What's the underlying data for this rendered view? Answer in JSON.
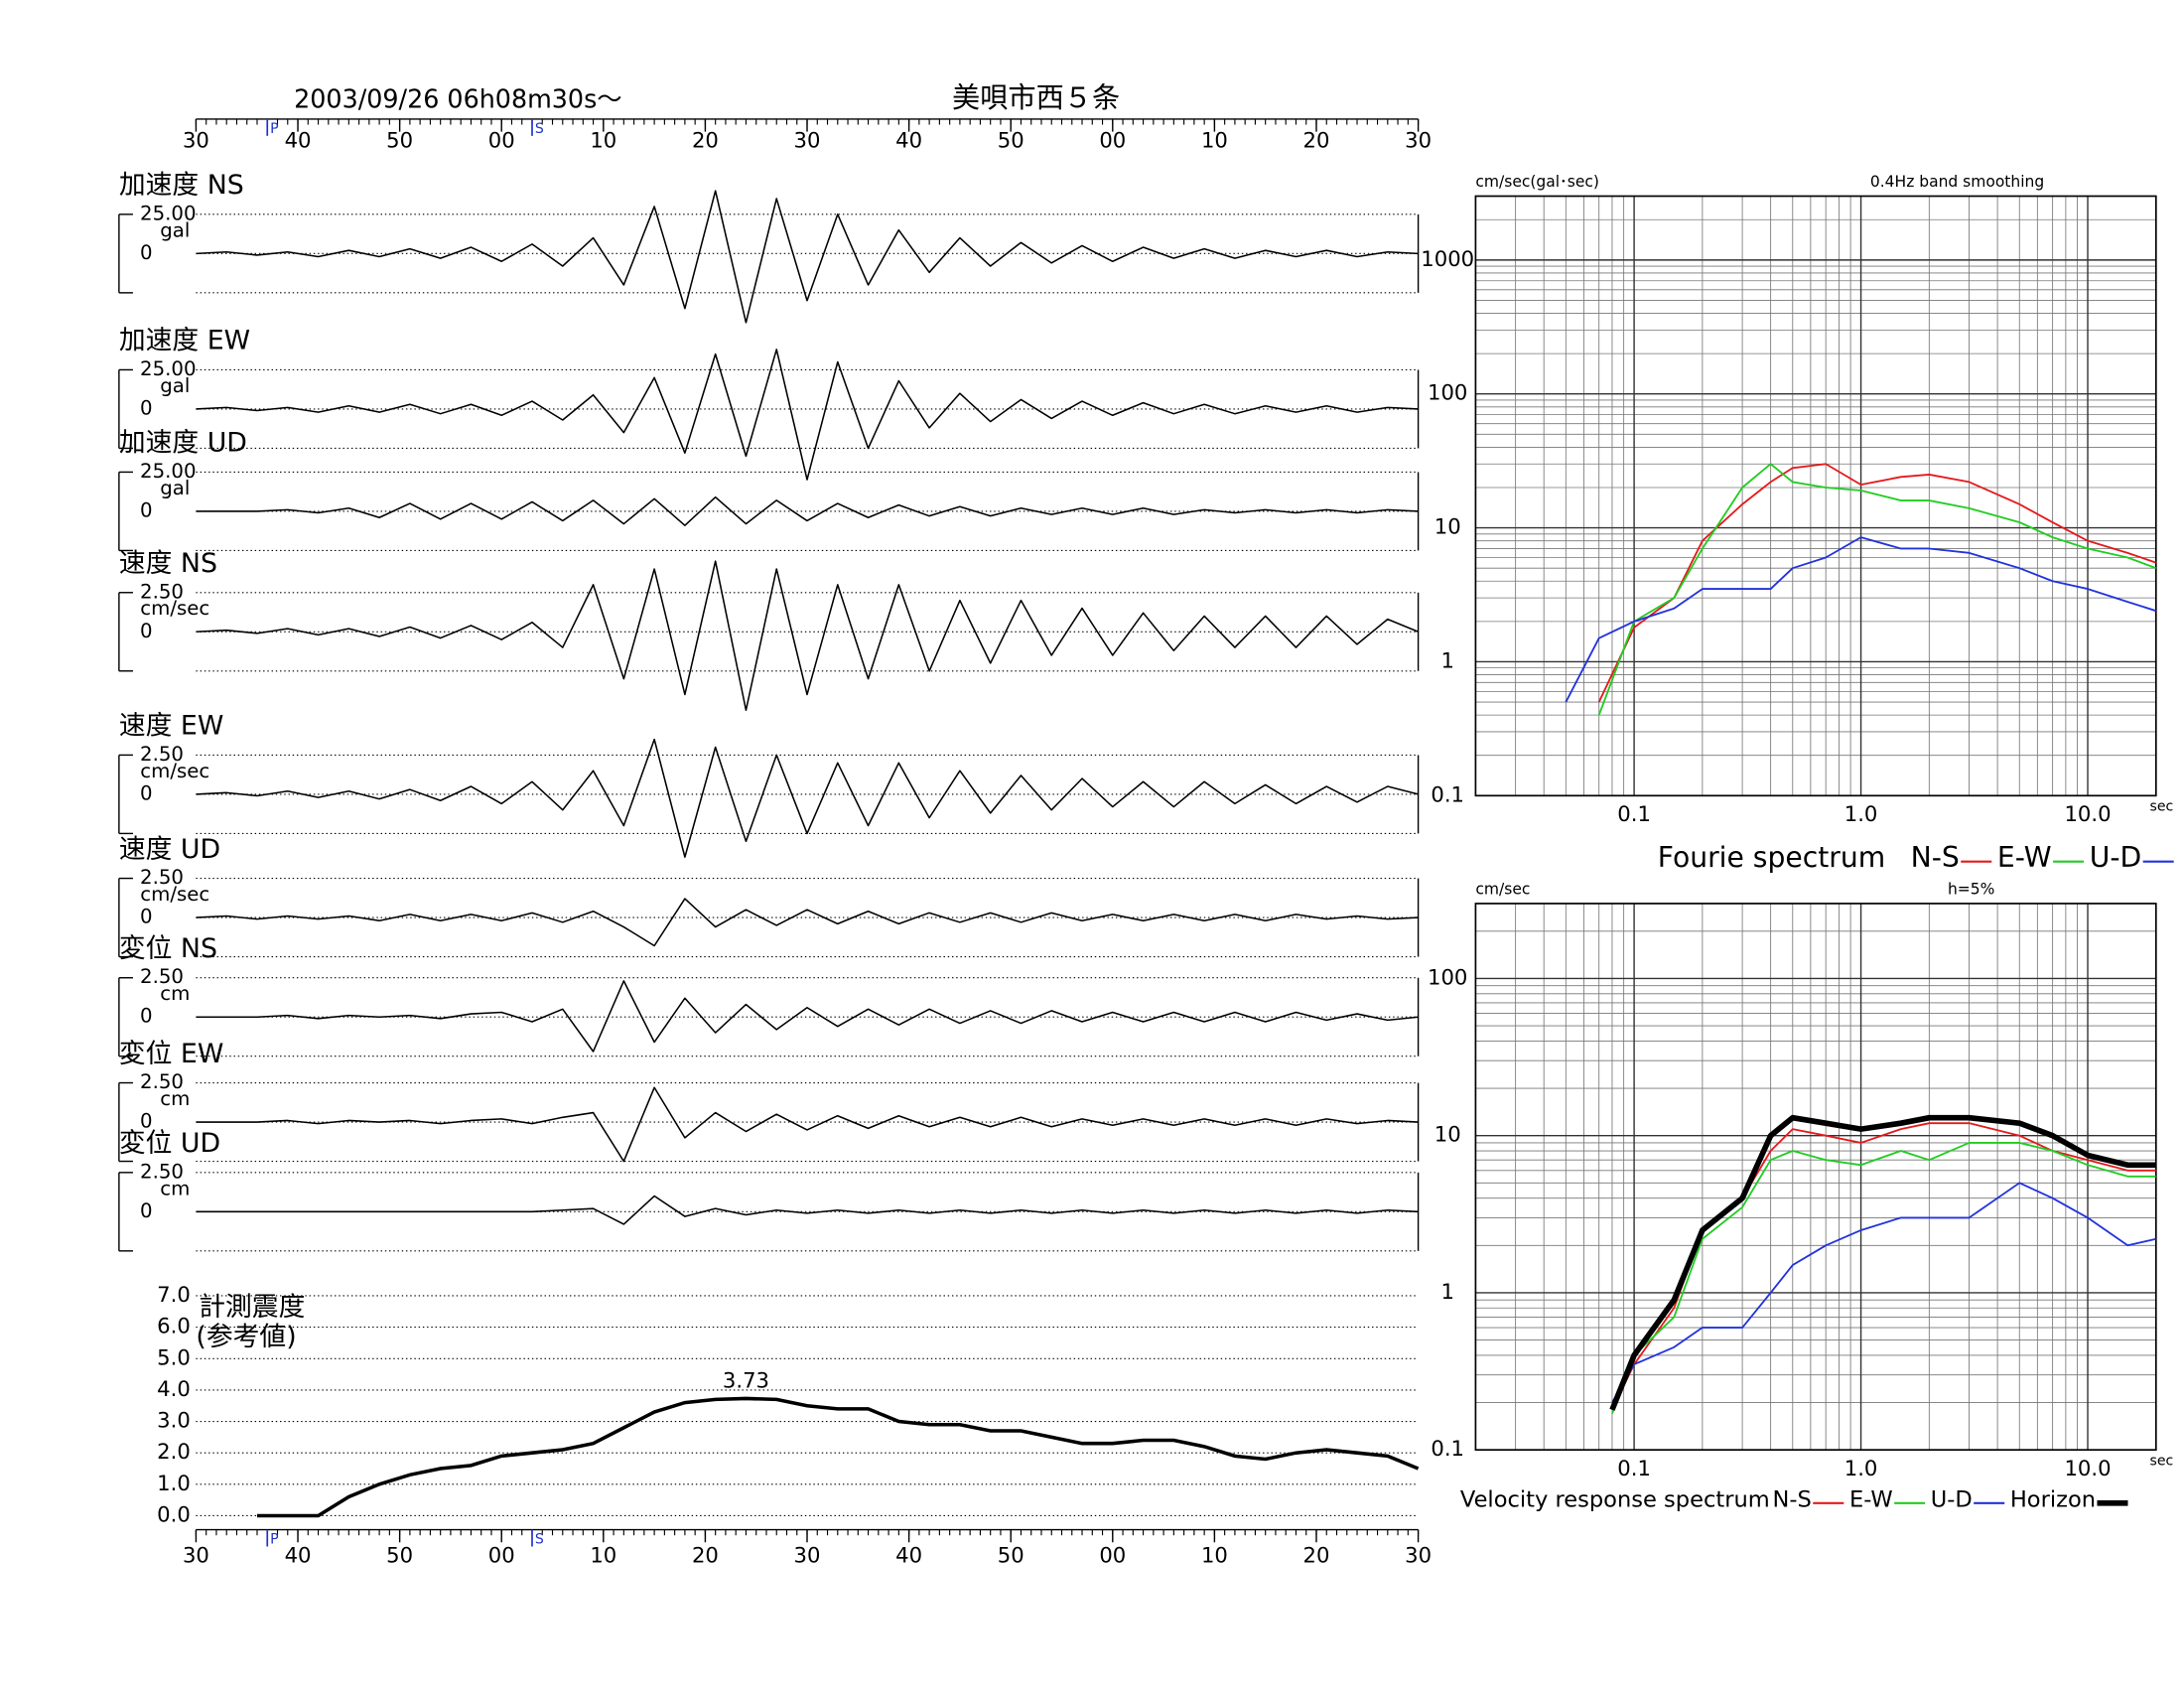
{
  "chart_data": [
    {
      "type": "waveform",
      "title": "2003/09/26  06h08m30s〜",
      "station": "美唄市西５条",
      "xlim": [
        0,
        120
      ],
      "xticks": [
        {
          "value": 0,
          "label": "30"
        },
        {
          "value": 10,
          "label": "40"
        },
        {
          "value": 20,
          "label": "50"
        },
        {
          "value": 30,
          "label": "00"
        },
        {
          "value": 40,
          "label": "10"
        },
        {
          "value": 50,
          "label": "20"
        },
        {
          "value": 60,
          "label": "30"
        },
        {
          "value": 70,
          "label": "40"
        },
        {
          "value": 80,
          "label": "50"
        },
        {
          "value": 90,
          "label": "00"
        },
        {
          "value": 100,
          "label": "10"
        },
        {
          "value": 110,
          "label": "20"
        },
        {
          "value": 120,
          "label": "30"
        }
      ],
      "phase_markers": [
        {
          "x": 7,
          "label": "P"
        },
        {
          "x": 33,
          "label": "S"
        }
      ],
      "x": [
        0,
        3,
        6,
        9,
        12,
        15,
        18,
        21,
        24,
        27,
        30,
        33,
        36,
        39,
        42,
        45,
        48,
        51,
        54,
        57,
        60,
        63,
        66,
        69,
        72,
        75,
        78,
        81,
        84,
        87,
        90,
        93,
        96,
        99,
        102,
        105,
        108,
        111,
        114,
        117,
        120
      ],
      "series": [
        {
          "name": "加速度 NS",
          "unit": "gal",
          "ylim": [
            -25,
            25
          ],
          "yticks": [
            0,
            {
              "value": 25,
              "label": "25.00"
            }
          ],
          "values": [
            0,
            1,
            -1,
            1,
            -2,
            2,
            -2,
            3,
            -3,
            4,
            -5,
            6,
            -8,
            10,
            -20,
            30,
            -35,
            40,
            -44,
            35,
            -30,
            25,
            -20,
            15,
            -12,
            10,
            -8,
            7,
            -6,
            5,
            -5,
            4,
            -3,
            3,
            -3,
            2,
            -2,
            2,
            -2,
            1,
            0
          ]
        },
        {
          "name": "加速度 EW",
          "unit": "gal",
          "ylim": [
            -25,
            25
          ],
          "yticks": [
            0,
            {
              "value": 25,
              "label": "25.00"
            }
          ],
          "values": [
            0,
            1,
            -1,
            1,
            -2,
            2,
            -2,
            3,
            -3,
            3,
            -4,
            5,
            -7,
            9,
            -15,
            20,
            -28,
            35,
            -30,
            38,
            -45,
            30,
            -25,
            18,
            -12,
            10,
            -8,
            6,
            -6,
            5,
            -4,
            4,
            -3,
            3,
            -3,
            2,
            -2,
            2,
            -2,
            1,
            0
          ]
        },
        {
          "name": "加速度 UD",
          "unit": "gal",
          "ylim": [
            -25,
            25
          ],
          "yticks": [
            0,
            {
              "value": 25,
              "label": "25.00"
            }
          ],
          "values": [
            0,
            0,
            0,
            1,
            -1,
            2,
            -4,
            5,
            -5,
            5,
            -5,
            6,
            -6,
            7,
            -8,
            8,
            -9,
            9,
            -8,
            7,
            -6,
            5,
            -4,
            4,
            -3,
            3,
            -3,
            2,
            -2,
            2,
            -2,
            2,
            -2,
            1,
            -1,
            1,
            -1,
            1,
            -1,
            1,
            0
          ]
        },
        {
          "name": "速度 NS",
          "unit": "cm/sec",
          "ylim": [
            -2.5,
            2.5
          ],
          "yticks": [
            0,
            {
              "value": 2.5,
              "label": "2.50"
            }
          ],
          "values": [
            0,
            0.1,
            -0.1,
            0.2,
            -0.2,
            0.2,
            -0.3,
            0.3,
            -0.4,
            0.4,
            -0.5,
            0.6,
            -1,
            3,
            -3,
            4,
            -4,
            4.5,
            -5,
            4,
            -4,
            3,
            -3,
            3,
            -2.5,
            2,
            -2,
            2,
            -1.5,
            1.5,
            -1.5,
            1.2,
            -1.2,
            1,
            -1,
            1,
            -1,
            1,
            -0.8,
            0.8,
            0
          ]
        },
        {
          "name": "速度 EW",
          "unit": "cm/sec",
          "ylim": [
            -2.5,
            2.5
          ],
          "yticks": [
            0,
            {
              "value": 2.5,
              "label": "2.50"
            }
          ],
          "values": [
            0,
            0.1,
            -0.1,
            0.2,
            -0.2,
            0.2,
            -0.3,
            0.3,
            -0.4,
            0.5,
            -0.6,
            0.8,
            -1,
            1.5,
            -2,
            3.5,
            -4,
            3,
            -3,
            2.5,
            -2.5,
            2,
            -2,
            2,
            -1.5,
            1.5,
            -1.2,
            1.2,
            -1,
            1,
            -0.8,
            0.8,
            -0.8,
            0.8,
            -0.6,
            0.6,
            -0.6,
            0.5,
            -0.5,
            0.5,
            0
          ]
        },
        {
          "name": "速度 UD",
          "unit": "cm/sec",
          "ylim": [
            -2.5,
            2.5
          ],
          "yticks": [
            0,
            {
              "value": 2.5,
              "label": "2.50"
            }
          ],
          "values": [
            0,
            0.1,
            -0.1,
            0.1,
            -0.1,
            0.1,
            -0.2,
            0.2,
            -0.2,
            0.2,
            -0.2,
            0.3,
            -0.3,
            0.4,
            -0.6,
            -1.8,
            1.2,
            -0.6,
            0.5,
            -0.5,
            0.5,
            -0.4,
            0.4,
            -0.4,
            0.3,
            -0.3,
            0.3,
            -0.3,
            0.3,
            -0.2,
            0.2,
            -0.2,
            0.2,
            -0.2,
            0.2,
            -0.2,
            0.2,
            -0.1,
            0.1,
            -0.1,
            0
          ]
        },
        {
          "name": "変位 NS",
          "unit": "cm",
          "ylim": [
            -2.5,
            2.5
          ],
          "yticks": [
            0,
            {
              "value": 2.5,
              "label": "2.50"
            }
          ],
          "values": [
            0,
            0,
            0,
            0.1,
            -0.1,
            0.1,
            0,
            0.1,
            -0.1,
            0.2,
            0.3,
            -0.3,
            0.5,
            -2.2,
            2.3,
            -1.6,
            1.2,
            -1,
            0.8,
            -0.8,
            0.6,
            -0.6,
            0.5,
            -0.5,
            0.5,
            -0.4,
            0.4,
            -0.4,
            0.4,
            -0.3,
            0.3,
            -0.3,
            0.3,
            -0.3,
            0.3,
            -0.3,
            0.3,
            -0.2,
            0.2,
            -0.2,
            0
          ]
        },
        {
          "name": "変位 EW",
          "unit": "cm",
          "ylim": [
            -2.5,
            2.5
          ],
          "yticks": [
            0,
            {
              "value": 2.5,
              "label": "2.50"
            }
          ],
          "values": [
            0,
            0,
            0,
            0.1,
            -0.1,
            0.1,
            0,
            0.1,
            -0.1,
            0.1,
            0.2,
            -0.1,
            0.3,
            0.6,
            -2.5,
            2.2,
            -1,
            0.6,
            -0.6,
            0.5,
            -0.5,
            0.4,
            -0.4,
            0.4,
            -0.3,
            0.3,
            -0.3,
            0.3,
            -0.3,
            0.2,
            -0.2,
            0.2,
            -0.2,
            0.2,
            -0.2,
            0.2,
            -0.2,
            0.2,
            -0.1,
            0.1,
            0
          ]
        },
        {
          "name": "変位 UD",
          "unit": "cm",
          "ylim": [
            -2.5,
            2.5
          ],
          "yticks": [
            0,
            {
              "value": 2.5,
              "label": "2.50"
            }
          ],
          "values": [
            0,
            0,
            0,
            0,
            0,
            0,
            0,
            0,
            0,
            0,
            0,
            0,
            0.1,
            0.2,
            -0.8,
            1,
            -0.3,
            0.2,
            -0.2,
            0.1,
            -0.1,
            0.1,
            -0.1,
            0.1,
            -0.1,
            0.1,
            -0.1,
            0.1,
            -0.1,
            0.1,
            -0.1,
            0.1,
            -0.1,
            0.1,
            -0.1,
            0.1,
            -0.1,
            0.1,
            -0.1,
            0.1,
            0
          ]
        }
      ]
    },
    {
      "type": "line",
      "title": "計測震度",
      "subtitle": "(参考値)",
      "xlim": [
        0,
        120
      ],
      "xticks": [
        {
          "value": 0,
          "label": "30"
        },
        {
          "value": 10,
          "label": "40"
        },
        {
          "value": 20,
          "label": "50"
        },
        {
          "value": 30,
          "label": "00"
        },
        {
          "value": 40,
          "label": "10"
        },
        {
          "value": 50,
          "label": "20"
        },
        {
          "value": 60,
          "label": "30"
        },
        {
          "value": 70,
          "label": "40"
        },
        {
          "value": 80,
          "label": "50"
        },
        {
          "value": 90,
          "label": "00"
        },
        {
          "value": 100,
          "label": "10"
        },
        {
          "value": 110,
          "label": "20"
        },
        {
          "value": 120,
          "label": "30"
        }
      ],
      "phase_markers": [
        {
          "x": 7,
          "label": "P"
        },
        {
          "x": 33,
          "label": "S"
        }
      ],
      "ylim": [
        0,
        7
      ],
      "yticks": [
        {
          "value": 0,
          "label": "0.0"
        },
        {
          "value": 1,
          "label": "1.0"
        },
        {
          "value": 2,
          "label": "2.0"
        },
        {
          "value": 3,
          "label": "3.0"
        },
        {
          "value": 4,
          "label": "4.0"
        },
        {
          "value": 5,
          "label": "5.0"
        },
        {
          "value": 6,
          "label": "6.0"
        },
        {
          "value": 7,
          "label": "7.0"
        }
      ],
      "grid": true,
      "color": "#000000",
      "x": [
        0,
        3,
        6,
        9,
        12,
        15,
        18,
        21,
        24,
        27,
        30,
        33,
        36,
        39,
        42,
        45,
        48,
        51,
        54,
        57,
        60,
        63,
        66,
        69,
        72,
        75,
        78,
        81,
        84,
        87,
        90,
        93,
        96,
        99,
        102,
        105,
        108,
        111,
        114,
        117,
        120
      ],
      "values": [
        null,
        null,
        0,
        0,
        0,
        0.6,
        1.0,
        1.3,
        1.5,
        1.6,
        1.9,
        2.0,
        2.1,
        2.3,
        2.8,
        3.3,
        3.6,
        3.7,
        3.73,
        3.7,
        3.5,
        3.4,
        3.4,
        3.0,
        2.9,
        2.9,
        2.7,
        2.7,
        2.5,
        2.3,
        2.3,
        2.4,
        2.4,
        2.2,
        1.9,
        1.8,
        2.0,
        2.1,
        2.0,
        1.9,
        1.5
      ],
      "peak": {
        "x": 54,
        "y": 3.73
      }
    },
    {
      "type": "line",
      "title": "Fourie spectrum",
      "y_label": "cm/sec(gal･sec)",
      "note": "0.4Hz band smoothing",
      "x_unit": "sec",
      "log_x": true,
      "log_y": true,
      "grid": true,
      "minor_grid": true,
      "xlim": [
        0.02,
        20
      ],
      "ylim": [
        0.1,
        3000
      ],
      "xticks": [
        0.1,
        {
          "value": 1,
          "label": "1.0"
        },
        {
          "value": 10,
          "label": "10.0"
        }
      ],
      "yticks": [
        0.1,
        1,
        10,
        100,
        1000
      ],
      "x": [
        0.02,
        0.03,
        0.05,
        0.07,
        0.1,
        0.15,
        0.2,
        0.3,
        0.4,
        0.5,
        0.7,
        1.0,
        1.5,
        2,
        3,
        5,
        7,
        10,
        15,
        20
      ],
      "series": [
        {
          "name": "N-S",
          "color": "#e41a1c",
          "values": [
            null,
            null,
            null,
            0.5,
            1.8,
            3,
            8,
            15,
            22,
            28,
            30,
            21,
            24,
            25,
            22,
            15,
            11,
            8,
            6.5,
            5.5
          ]
        },
        {
          "name": "E-W",
          "color": "#22cc22",
          "values": [
            null,
            null,
            null,
            0.4,
            2,
            3,
            7,
            20,
            30,
            22,
            20,
            19,
            16,
            16,
            14,
            11,
            8.5,
            7,
            6,
            5
          ]
        },
        {
          "name": "U-D",
          "color": "#2233dd",
          "values": [
            null,
            null,
            0.5,
            1.5,
            2,
            2.5,
            3.5,
            3.5,
            3.5,
            5,
            6,
            8.5,
            7,
            7,
            6.5,
            5,
            4,
            3.5,
            2.8,
            2.4
          ]
        }
      ]
    },
    {
      "type": "line",
      "title": "Velocity response spectrum",
      "y_label": "cm/sec",
      "note": "h=5%",
      "x_unit": "sec",
      "log_x": true,
      "log_y": true,
      "grid": true,
      "minor_grid": true,
      "xlim": [
        0.02,
        20
      ],
      "ylim": [
        0.1,
        300
      ],
      "xticks": [
        0.1,
        {
          "value": 1,
          "label": "1.0"
        },
        {
          "value": 10,
          "label": "10.0"
        }
      ],
      "yticks": [
        0.1,
        1,
        10,
        100
      ],
      "x": [
        0.08,
        0.1,
        0.15,
        0.2,
        0.3,
        0.4,
        0.5,
        0.7,
        1.0,
        1.5,
        2,
        3,
        5,
        7,
        10,
        15,
        20
      ],
      "series": [
        {
          "name": "N-S",
          "color": "#e41a1c",
          "values": [
            0.18,
            0.35,
            0.8,
            2.5,
            4,
            8,
            11,
            10,
            9,
            11,
            12,
            12,
            10,
            8,
            7,
            6,
            6
          ]
        },
        {
          "name": "E-W",
          "color": "#22cc22",
          "values": [
            0.17,
            0.4,
            0.7,
            2.2,
            3.5,
            7,
            8,
            7,
            6.5,
            8,
            7,
            9,
            9,
            8,
            6.5,
            5.5,
            5.5
          ]
        },
        {
          "name": "U-D",
          "color": "#2233dd",
          "values": [
            0.2,
            0.35,
            0.45,
            0.6,
            0.6,
            1,
            1.5,
            2,
            2.5,
            3,
            3,
            3,
            5,
            4,
            3,
            2,
            2.2
          ]
        },
        {
          "name": "Horizon",
          "color": "#000000",
          "line_width": 4,
          "values": [
            0.18,
            0.4,
            0.9,
            2.5,
            4,
            10,
            13,
            12,
            11,
            12,
            13,
            13,
            12,
            10,
            7.5,
            6.5,
            6.5
          ]
        }
      ]
    }
  ]
}
